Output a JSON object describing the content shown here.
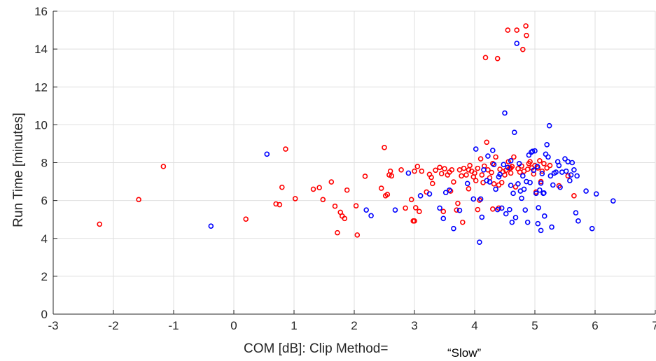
{
  "chart_data": {
    "type": "scatter",
    "title": "",
    "xlabel": "COM [dB]: Clip Method=",
    "xlabel_value": "“Slow”",
    "ylabel": "Run Time [minutes]",
    "xlim": [
      -3,
      7
    ],
    "ylim": [
      0,
      16
    ],
    "xticks": [
      -3,
      -2,
      -1,
      0,
      1,
      2,
      3,
      4,
      5,
      6,
      7
    ],
    "yticks": [
      0,
      2,
      4,
      6,
      8,
      10,
      12,
      14,
      16
    ],
    "grid": true,
    "legend": "none",
    "colors": {
      "red": "#ff0000",
      "blue": "#0000ff",
      "grid": "#dfdfdf",
      "axis": "#262626"
    },
    "series": [
      {
        "color": "#ff0000",
        "points": [
          [
            -2.23,
            4.75
          ],
          [
            -1.58,
            6.05
          ],
          [
            -1.17,
            7.8
          ],
          [
            0.2,
            5.02
          ],
          [
            0.7,
            5.82
          ],
          [
            0.76,
            5.78
          ],
          [
            0.8,
            6.7
          ],
          [
            0.86,
            8.72
          ],
          [
            1.02,
            6.1
          ],
          [
            1.32,
            6.6
          ],
          [
            1.42,
            6.68
          ],
          [
            1.48,
            6.05
          ],
          [
            1.62,
            6.98
          ],
          [
            1.68,
            5.7
          ],
          [
            1.72,
            4.3
          ],
          [
            1.77,
            5.38
          ],
          [
            1.8,
            5.18
          ],
          [
            1.84,
            5.05
          ],
          [
            1.88,
            6.55
          ],
          [
            2.03,
            5.72
          ],
          [
            2.05,
            4.18
          ],
          [
            2.18,
            7.28
          ],
          [
            2.45,
            6.65
          ],
          [
            2.5,
            8.8
          ],
          [
            2.52,
            6.25
          ],
          [
            2.55,
            6.32
          ],
          [
            2.58,
            7.35
          ],
          [
            2.6,
            7.55
          ],
          [
            2.62,
            7.3
          ],
          [
            2.78,
            7.62
          ],
          [
            2.85,
            5.6
          ],
          [
            2.95,
            6.05
          ],
          [
            2.98,
            4.92
          ],
          [
            3.0,
            4.92
          ],
          [
            3.0,
            7.55
          ],
          [
            3.02,
            5.62
          ],
          [
            3.05,
            7.8
          ],
          [
            3.08,
            5.42
          ],
          [
            3.12,
            7.55
          ],
          [
            3.2,
            6.45
          ],
          [
            3.25,
            7.38
          ],
          [
            3.28,
            7.22
          ],
          [
            3.3,
            6.9
          ],
          [
            3.35,
            7.6
          ],
          [
            3.42,
            7.75
          ],
          [
            3.45,
            7.42
          ],
          [
            3.48,
            5.42
          ],
          [
            3.5,
            7.68
          ],
          [
            3.55,
            7.35
          ],
          [
            3.58,
            7.5
          ],
          [
            3.62,
            7.62
          ],
          [
            3.65,
            6.98
          ],
          [
            3.7,
            5.5
          ],
          [
            3.72,
            5.85
          ],
          [
            3.75,
            7.62
          ],
          [
            3.78,
            7.3
          ],
          [
            3.8,
            4.85
          ],
          [
            3.82,
            7.7
          ],
          [
            3.86,
            7.35
          ],
          [
            3.9,
            7.62
          ],
          [
            3.92,
            7.85
          ],
          [
            3.95,
            7.55
          ],
          [
            3.98,
            7.25
          ],
          [
            4.0,
            7.45
          ],
          [
            4.02,
            7.05
          ],
          [
            4.05,
            7.7
          ],
          [
            4.08,
            6.02
          ],
          [
            4.1,
            8.2
          ],
          [
            4.12,
            7.35
          ],
          [
            4.14,
            6.95
          ],
          [
            4.16,
            7.82
          ],
          [
            4.18,
            13.55
          ],
          [
            4.2,
            9.08
          ],
          [
            4.22,
            7.62
          ],
          [
            4.25,
            7.2
          ],
          [
            4.28,
            7.48
          ],
          [
            4.3,
            7.95
          ],
          [
            4.32,
            6.88
          ],
          [
            4.35,
            8.3
          ],
          [
            4.38,
            13.5
          ],
          [
            4.4,
            6.82
          ],
          [
            4.42,
            7.65
          ],
          [
            4.45,
            6.95
          ],
          [
            4.47,
            7.52
          ],
          [
            4.5,
            7.35
          ],
          [
            4.52,
            7.6
          ],
          [
            4.55,
            15.0
          ],
          [
            4.56,
            8.05
          ],
          [
            4.58,
            7.7
          ],
          [
            4.6,
            7.45
          ],
          [
            4.62,
            7.8
          ],
          [
            4.65,
            8.3
          ],
          [
            4.68,
            6.72
          ],
          [
            4.7,
            15.0
          ],
          [
            4.72,
            7.68
          ],
          [
            4.75,
            7.5
          ],
          [
            4.78,
            7.82
          ],
          [
            4.8,
            13.98
          ],
          [
            4.82,
            7.55
          ],
          [
            4.85,
            15.22
          ],
          [
            4.86,
            14.72
          ],
          [
            4.88,
            7.65
          ],
          [
            4.9,
            7.95
          ],
          [
            4.92,
            8.05
          ],
          [
            4.95,
            7.72
          ],
          [
            4.98,
            7.4
          ],
          [
            5.0,
            7.85
          ],
          [
            5.02,
            6.45
          ],
          [
            5.05,
            7.72
          ],
          [
            5.08,
            8.1
          ],
          [
            5.1,
            7.0
          ],
          [
            5.12,
            7.55
          ],
          [
            5.15,
            7.95
          ],
          [
            5.2,
            7.72
          ],
          [
            5.25,
            7.85
          ],
          [
            5.4,
            6.78
          ],
          [
            5.55,
            7.3
          ],
          [
            5.65,
            6.25
          ],
          [
            4.3,
            5.55
          ],
          [
            4.4,
            5.6
          ],
          [
            3.9,
            6.62
          ],
          [
            4.6,
            7.72
          ],
          [
            4.05,
            5.52
          ],
          [
            3.6,
            6.5
          ]
        ]
      },
      {
        "color": "#0000ff",
        "points": [
          [
            -0.38,
            4.65
          ],
          [
            0.55,
            8.45
          ],
          [
            2.2,
            5.5
          ],
          [
            2.28,
            5.2
          ],
          [
            2.68,
            5.5
          ],
          [
            2.9,
            7.45
          ],
          [
            3.1,
            6.25
          ],
          [
            3.25,
            6.35
          ],
          [
            3.42,
            5.6
          ],
          [
            3.48,
            5.05
          ],
          [
            3.52,
            6.42
          ],
          [
            3.58,
            6.55
          ],
          [
            3.65,
            4.52
          ],
          [
            3.75,
            5.48
          ],
          [
            3.88,
            6.9
          ],
          [
            3.98,
            6.08
          ],
          [
            4.02,
            8.72
          ],
          [
            4.08,
            3.8
          ],
          [
            4.1,
            6.08
          ],
          [
            4.12,
            5.12
          ],
          [
            4.15,
            7.62
          ],
          [
            4.2,
            7.05
          ],
          [
            4.22,
            8.35
          ],
          [
            4.25,
            6.98
          ],
          [
            4.3,
            8.65
          ],
          [
            4.32,
            7.9
          ],
          [
            4.35,
            6.6
          ],
          [
            4.38,
            5.52
          ],
          [
            4.42,
            7.38
          ],
          [
            4.45,
            5.6
          ],
          [
            4.48,
            7.9
          ],
          [
            4.5,
            10.62
          ],
          [
            4.52,
            5.3
          ],
          [
            4.55,
            7.75
          ],
          [
            4.58,
            5.52
          ],
          [
            4.6,
            8.1
          ],
          [
            4.62,
            4.85
          ],
          [
            4.64,
            6.38
          ],
          [
            4.66,
            9.6
          ],
          [
            4.68,
            5.1
          ],
          [
            4.7,
            14.3
          ],
          [
            4.72,
            6.88
          ],
          [
            4.74,
            7.95
          ],
          [
            4.76,
            6.5
          ],
          [
            4.78,
            6.12
          ],
          [
            4.8,
            7.3
          ],
          [
            4.82,
            6.6
          ],
          [
            4.84,
            5.5
          ],
          [
            4.86,
            7.0
          ],
          [
            4.88,
            4.85
          ],
          [
            4.9,
            8.4
          ],
          [
            4.92,
            6.95
          ],
          [
            4.94,
            8.55
          ],
          [
            4.96,
            8.6
          ],
          [
            4.98,
            7.6
          ],
          [
            5.0,
            8.62
          ],
          [
            5.02,
            6.38
          ],
          [
            5.04,
            7.8
          ],
          [
            5.06,
            5.62
          ],
          [
            5.08,
            6.55
          ],
          [
            5.1,
            6.92
          ],
          [
            5.12,
            7.42
          ],
          [
            5.14,
            6.38
          ],
          [
            5.16,
            5.18
          ],
          [
            5.18,
            8.45
          ],
          [
            5.2,
            8.95
          ],
          [
            5.22,
            8.3
          ],
          [
            5.24,
            9.95
          ],
          [
            5.26,
            7.3
          ],
          [
            5.28,
            4.6
          ],
          [
            5.3,
            6.82
          ],
          [
            5.32,
            7.45
          ],
          [
            5.35,
            7.5
          ],
          [
            5.38,
            8.05
          ],
          [
            5.4,
            7.85
          ],
          [
            5.42,
            6.7
          ],
          [
            5.45,
            7.5
          ],
          [
            5.5,
            8.2
          ],
          [
            5.52,
            7.55
          ],
          [
            5.55,
            8.05
          ],
          [
            5.58,
            7.05
          ],
          [
            5.62,
            8.0
          ],
          [
            5.65,
            7.62
          ],
          [
            5.68,
            5.35
          ],
          [
            5.7,
            7.3
          ],
          [
            5.72,
            4.92
          ],
          [
            5.85,
            6.5
          ],
          [
            5.95,
            4.52
          ],
          [
            6.02,
            6.35
          ],
          [
            6.3,
            5.98
          ],
          [
            5.1,
            4.42
          ],
          [
            5.05,
            4.78
          ],
          [
            4.4,
            7.25
          ],
          [
            4.6,
            6.8
          ],
          [
            5.6,
            7.35
          ],
          [
            5.15,
            6.4
          ]
        ]
      }
    ]
  }
}
